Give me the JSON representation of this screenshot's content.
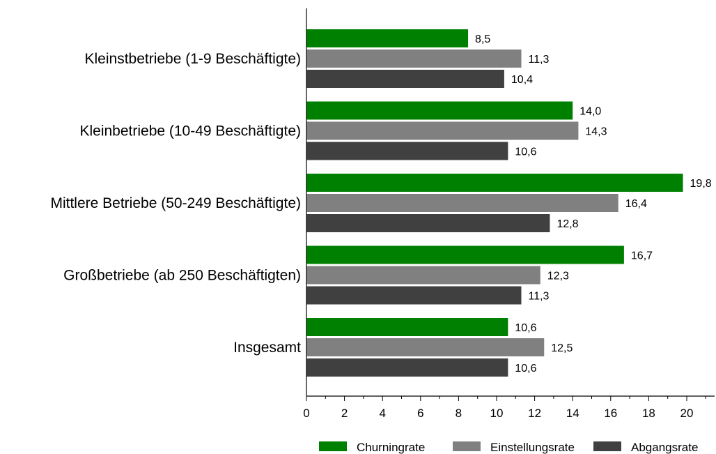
{
  "chart_data": {
    "type": "bar",
    "orientation": "horizontal",
    "title": "",
    "xlabel": "",
    "ylabel": "",
    "categories": [
      "Kleinstbetriebe (1-9 Beschäftigte)",
      "Kleinbetriebe (10-49 Beschäftigte)",
      "Mittlere Betriebe (50-249 Beschäftigte)",
      "Großbetriebe (ab 250 Beschäftigten)",
      "Insgesamt"
    ],
    "series": [
      {
        "name": "Churningrate",
        "color": "#008000",
        "values": [
          8.5,
          14.0,
          19.8,
          16.7,
          10.6
        ],
        "labels": [
          "8,5",
          "14,0",
          "19,8",
          "16,7",
          "10,6"
        ]
      },
      {
        "name": "Einstellungsrate",
        "color": "#808080",
        "values": [
          11.3,
          14.3,
          16.4,
          12.3,
          12.5
        ],
        "labels": [
          "11,3",
          "14,3",
          "16,4",
          "12,3",
          "12,5"
        ]
      },
      {
        "name": "Abgangsrate",
        "color": "#404040",
        "values": [
          10.4,
          10.6,
          12.8,
          11.3,
          10.6
        ],
        "labels": [
          "10,4",
          "10,6",
          "12,8",
          "11,3",
          "10,6"
        ]
      }
    ],
    "xlim": [
      0,
      21.5
    ],
    "x_ticks": [
      "0",
      "2",
      "4",
      "6",
      "8",
      "10",
      "12",
      "14",
      "16",
      "18",
      "20"
    ],
    "grid": false,
    "legend_position": "bottom"
  }
}
